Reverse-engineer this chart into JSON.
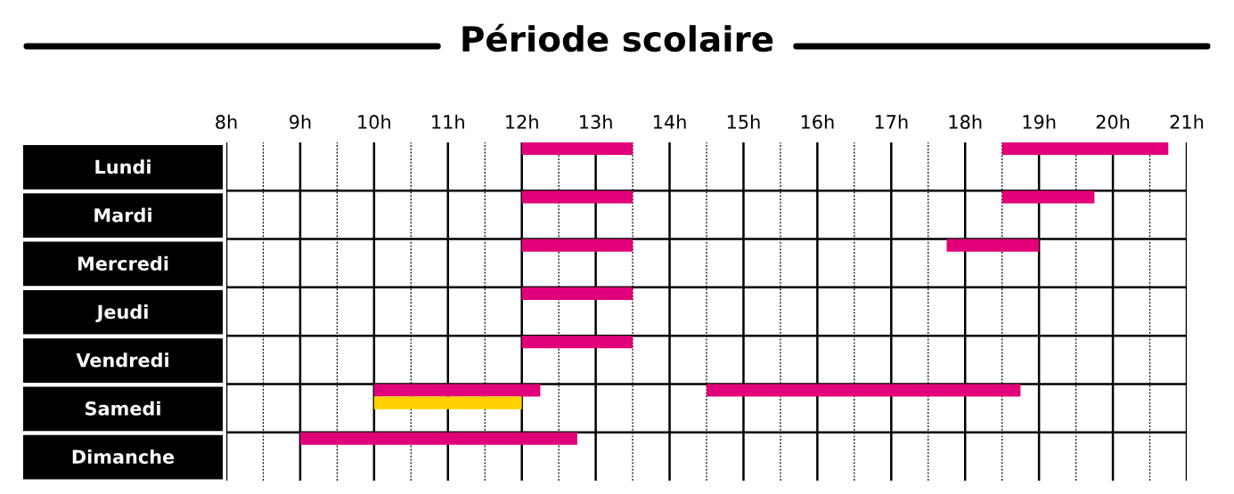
{
  "chart_data": {
    "type": "bar",
    "orientation": "horizontal",
    "title": "Période scolaire",
    "categories": [
      "Lundi",
      "Mardi",
      "Mercredi",
      "Jeudi",
      "Vendredi",
      "Samedi",
      "Dimanche"
    ],
    "series": [
      {
        "color": "#e2007a",
        "base": [
          12,
          12,
          12,
          12,
          12,
          10,
          9
        ],
        "values": [
          1.5,
          1.5,
          1.5,
          1.5,
          1.5,
          2.25,
          3.75
        ]
      },
      {
        "color": "#e2007a",
        "base": [
          18.5,
          18.5,
          17.75,
          null,
          null,
          14.5,
          null
        ],
        "values": [
          2.25,
          1.25,
          1.25,
          null,
          null,
          4.25,
          null
        ]
      },
      {
        "color": "#ffd200",
        "base": [
          null,
          null,
          null,
          null,
          null,
          10,
          null
        ],
        "values": [
          null,
          null,
          null,
          null,
          null,
          2,
          null
        ]
      }
    ],
    "xlim": [
      8,
      21
    ],
    "xticks": [
      {
        "value": 8,
        "label": "8h"
      },
      {
        "value": 8.5,
        "label": null
      },
      {
        "value": 9,
        "label": "9h"
      },
      {
        "value": 9.5,
        "label": null
      },
      {
        "value": 10,
        "label": "10h"
      },
      {
        "value": 10.5,
        "label": null
      },
      {
        "value": 11,
        "label": "11h"
      },
      {
        "value": 11.5,
        "label": null
      },
      {
        "value": 12,
        "label": "12h"
      },
      {
        "value": 12.5,
        "label": null
      },
      {
        "value": 13,
        "label": "13h"
      },
      {
        "value": 13.5,
        "label": null
      },
      {
        "value": 14,
        "label": "14h"
      },
      {
        "value": 14.5,
        "label": null
      },
      {
        "value": 15,
        "label": "15h"
      },
      {
        "value": 15.5,
        "label": null
      },
      {
        "value": 16,
        "label": "16h"
      },
      {
        "value": 16.5,
        "label": null
      },
      {
        "value": 17,
        "label": "17h"
      },
      {
        "value": 17.5,
        "label": null
      },
      {
        "value": 18,
        "label": "18h"
      },
      {
        "value": 18.5,
        "label": null
      },
      {
        "value": 19,
        "label": "19h"
      },
      {
        "value": 19.5,
        "label": null
      },
      {
        "value": 20,
        "label": "20h"
      },
      {
        "value": 20.5,
        "label": null
      },
      {
        "value": 21,
        "label": "21h"
      }
    ],
    "grid": "x",
    "legend": false
  }
}
